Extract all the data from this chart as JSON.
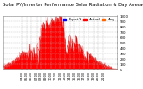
{
  "title": "Solar PV/Inverter Performance Solar Radiation & Day Average per Minute",
  "title_fontsize": 3.8,
  "bg_color": "#ffffff",
  "plot_bg_color": "#ffffff",
  "fill_color": "#ff0000",
  "line_color": "#dd0000",
  "grid_color": "#bbbbbb",
  "grid_style": "--",
  "ylim": [
    0,
    1000
  ],
  "num_points": 1440,
  "peak_value": 950,
  "legend_colors": [
    "#0000ff",
    "#ff0000",
    "#ff6600"
  ],
  "legend_labels": [
    "Expct'd",
    "Actual",
    "Avg"
  ],
  "x_tick_fontsize": 2.5,
  "y_tick_fontsize": 2.8,
  "legend_fontsize": 3.0,
  "ytick_vals": [
    0,
    100,
    200,
    300,
    400,
    500,
    600,
    700,
    800,
    900,
    1000
  ]
}
